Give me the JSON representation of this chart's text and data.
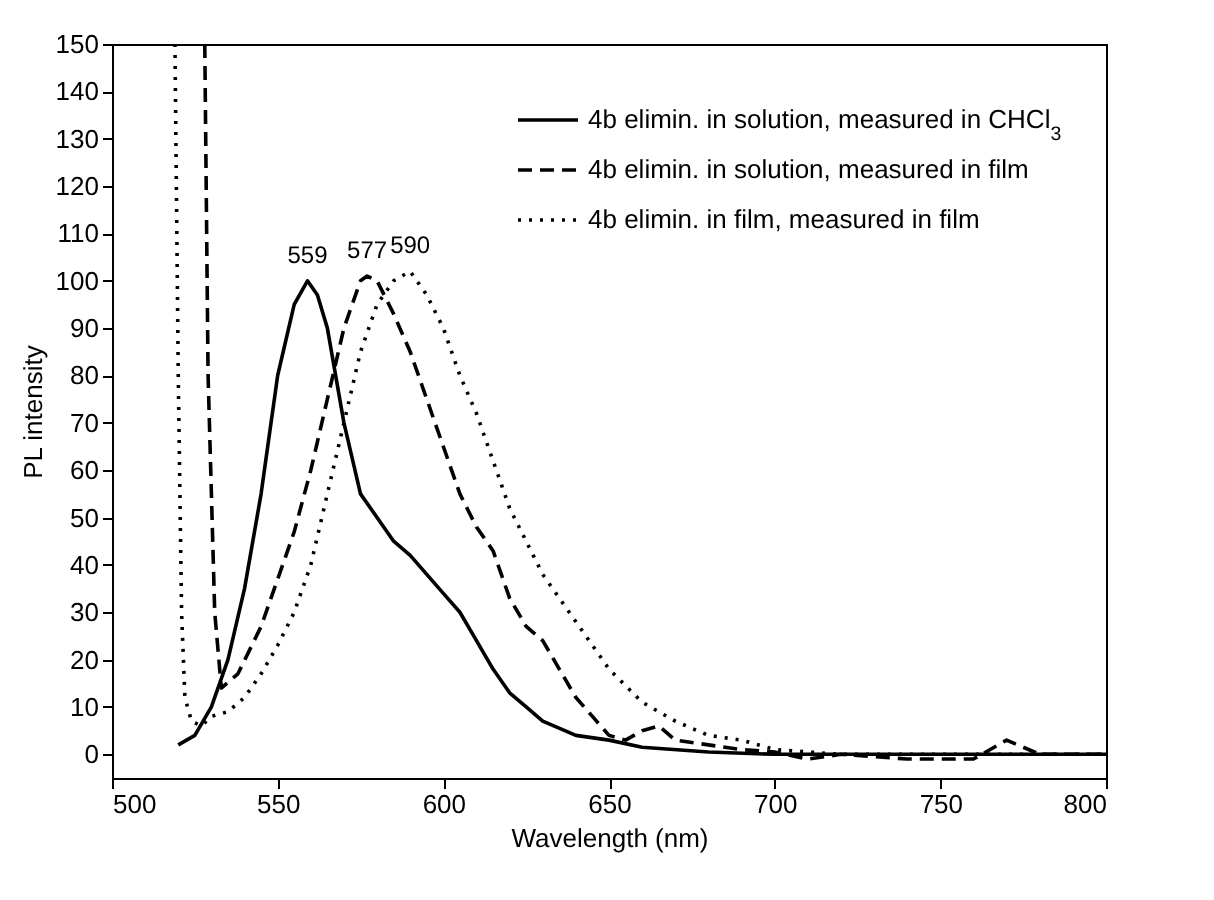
{
  "chart_data": {
    "type": "line",
    "xlabel": "Wavelength (nm)",
    "ylabel": "PL intensity",
    "xlim": [
      500,
      800
    ],
    "xticks": [
      500,
      550,
      600,
      650,
      700,
      750,
      800
    ],
    "ylim": [
      -5,
      150
    ],
    "yticks": [
      0,
      10,
      20,
      30,
      40,
      50,
      60,
      70,
      80,
      90,
      100,
      110,
      120,
      130,
      140,
      150
    ],
    "grid": false,
    "legend": "top right",
    "marker": "none",
    "annotations": [
      {
        "text": "559",
        "x": 559,
        "y": 100
      },
      {
        "text": "577",
        "x": 577,
        "y": 101
      },
      {
        "text": "590",
        "x": 590,
        "y": 102
      }
    ],
    "series": [
      {
        "name": "4b elimin. in solution, measured in CHCl$_{3}$",
        "color": "#000000",
        "line_style": "solid",
        "x": [
          520,
          525,
          530,
          535,
          540,
          545,
          550,
          555,
          559,
          562,
          565,
          570,
          575,
          580,
          585,
          590,
          595,
          600,
          605,
          610,
          615,
          620,
          625,
          630,
          640,
          650,
          660,
          680,
          700,
          750,
          800
        ],
        "values": [
          2,
          4,
          10,
          20,
          35,
          55,
          80,
          95,
          100,
          97,
          90,
          70,
          55,
          50,
          45,
          42,
          38,
          34,
          30,
          24,
          18,
          13,
          10,
          7,
          4,
          3,
          1.5,
          0.5,
          0,
          0,
          0
        ]
      },
      {
        "name": "4b elimin. in solution, measured in film",
        "color": "#000000",
        "line_style": "dashed",
        "x": [
          528,
          529,
          531,
          533,
          538,
          545,
          550,
          555,
          560,
          565,
          570,
          575,
          577,
          580,
          585,
          590,
          595,
          600,
          605,
          610,
          615,
          620,
          625,
          630,
          635,
          640,
          645,
          650,
          655,
          660,
          665,
          670,
          680,
          690,
          700,
          710,
          720,
          740,
          760,
          770,
          780,
          800
        ],
        "values": [
          150,
          80,
          30,
          14,
          17,
          27,
          37,
          47,
          60,
          75,
          90,
          100,
          101,
          100,
          93,
          85,
          75,
          65,
          55,
          48,
          43,
          33,
          27,
          24,
          18,
          12,
          8,
          4,
          3,
          5,
          6,
          3,
          2,
          1,
          0.5,
          -1,
          0,
          -1,
          -1,
          3,
          0,
          0
        ]
      },
      {
        "name": "4b elimin. in film, measured in film",
        "color": "#000000",
        "line_style": "dotted",
        "x": [
          519,
          520,
          521,
          522,
          524,
          527,
          530,
          535,
          540,
          545,
          550,
          555,
          560,
          565,
          570,
          575,
          580,
          585,
          590,
          595,
          600,
          605,
          610,
          615,
          620,
          625,
          630,
          640,
          650,
          660,
          670,
          680,
          690,
          700,
          720,
          800
        ],
        "values": [
          150,
          80,
          30,
          12,
          7,
          6,
          8,
          9,
          12,
          17,
          23,
          30,
          40,
          55,
          70,
          85,
          95,
          100,
          102,
          97,
          90,
          80,
          72,
          62,
          52,
          45,
          38,
          28,
          18,
          11,
          7,
          4,
          3,
          1,
          0,
          0
        ]
      }
    ]
  }
}
